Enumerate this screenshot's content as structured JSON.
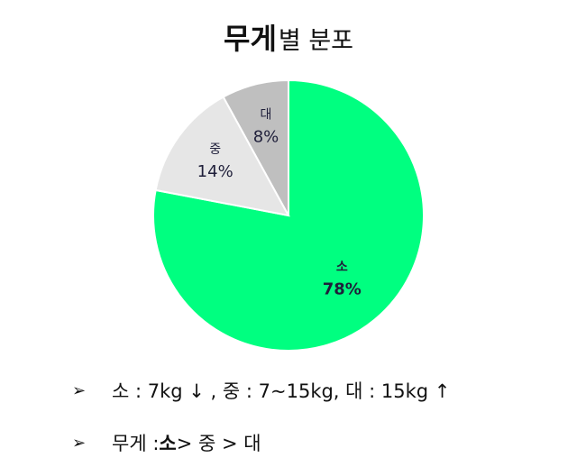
{
  "title": {
    "bold": "무게",
    "rest": "별 분포"
  },
  "chart_data": {
    "type": "pie",
    "slices": [
      {
        "label": "소",
        "value": 78,
        "value_label": "78%",
        "color": "#00ff80"
      },
      {
        "label": "중",
        "value": 14,
        "value_label": "14%",
        "color": "#e6e6e6"
      },
      {
        "label": "대",
        "value": 8,
        "value_label": "8%",
        "color": "#bfbfbf"
      }
    ]
  },
  "bullets": {
    "marker": "➢",
    "line1": "소 : 7kg ↓ , 중 : 7~15kg, 대 : 15kg ↑",
    "line2_prefix": "무게 : ",
    "line2_strong": "소",
    "line2_suffix": " > 중 > 대"
  }
}
